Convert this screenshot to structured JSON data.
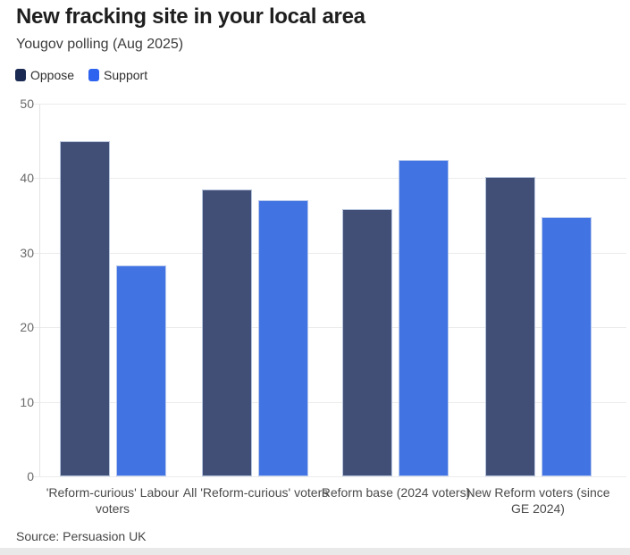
{
  "header": {
    "title": "New fracking site in your local area",
    "subtitle": "Yougov polling (Aug 2025)"
  },
  "legend": {
    "items": [
      {
        "label": "Oppose",
        "swatch_color": "#1b2a52"
      },
      {
        "label": "Support",
        "swatch_color": "#2d63ee"
      }
    ]
  },
  "footer": {
    "source": "Source: Persuasion UK"
  },
  "chart_data": {
    "type": "bar",
    "title": "New fracking site in your local area",
    "subtitle": "Yougov polling (Aug 2025)",
    "source": "Source: Persuasion UK",
    "categories": [
      "'Reform-curious' Labour voters",
      "All 'Reform-curious' voters",
      "Reform base (2024 voters)",
      "New Reform voters (since GE 2024)"
    ],
    "series": [
      {
        "name": "Oppose",
        "color": "#414f76",
        "values": [
          45.0,
          38.5,
          35.8,
          40.2
        ]
      },
      {
        "name": "Support",
        "color": "#4273e2",
        "values": [
          28.3,
          37.0,
          42.5,
          34.8
        ]
      }
    ],
    "ylabel": "",
    "xlabel": "",
    "ylim": [
      0,
      50
    ],
    "ytick_step": 10,
    "grid": true,
    "legend_position": "top-left",
    "units": "percent"
  }
}
